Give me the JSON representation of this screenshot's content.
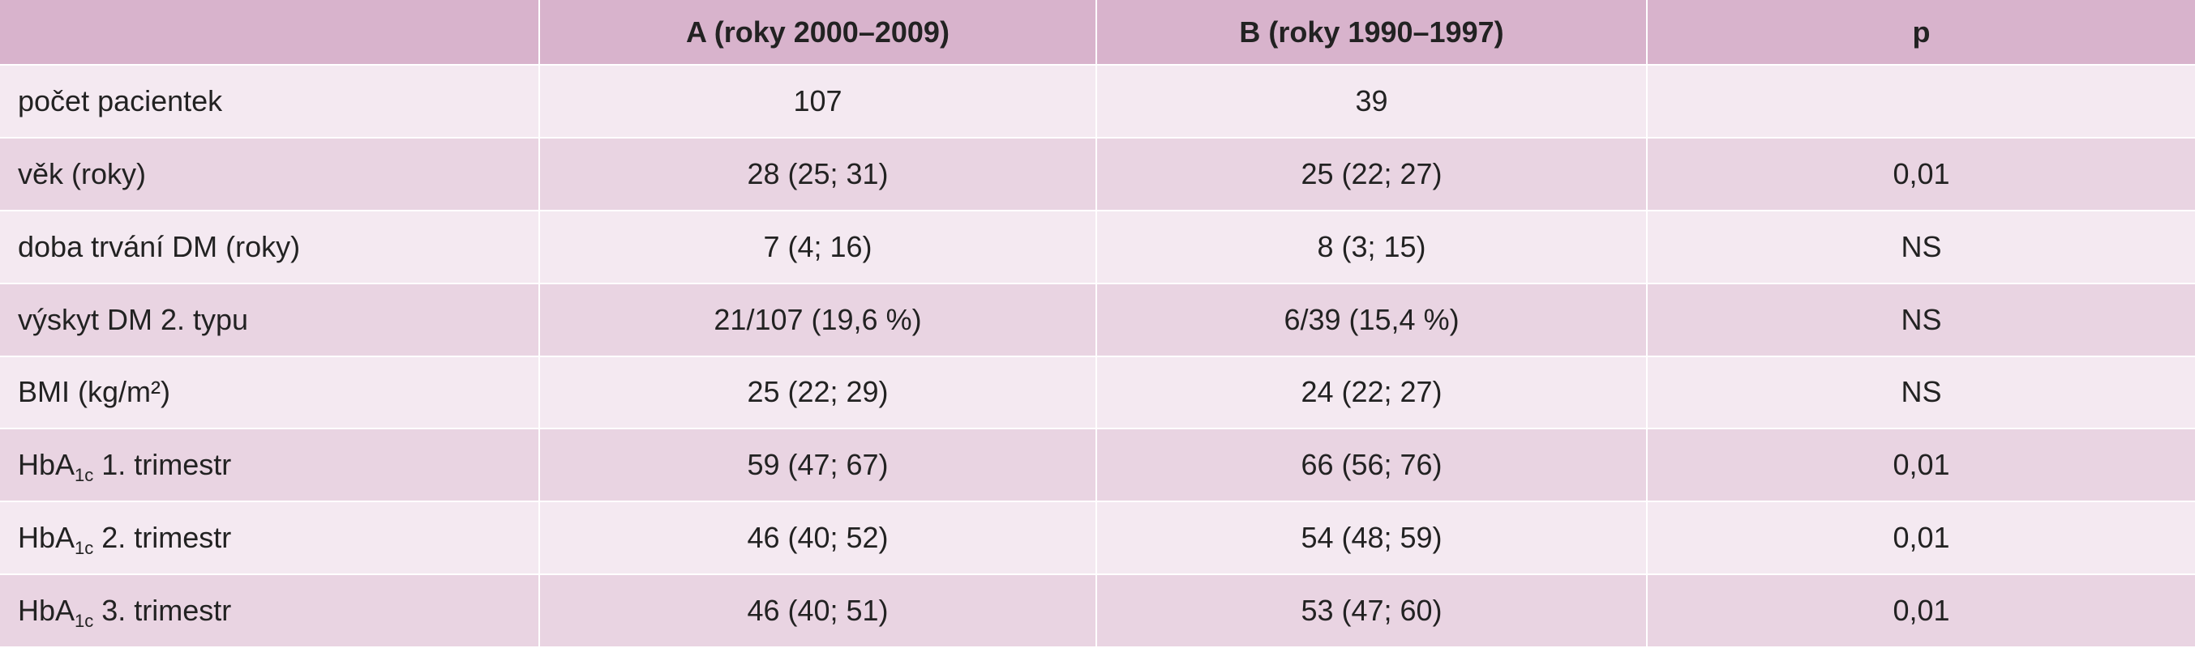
{
  "header": {
    "col0": "",
    "col1": "A (roky 2000–2009)",
    "col2": "B (roky 1990–1997)",
    "col3": "p"
  },
  "rows": [
    {
      "label": "počet pacientek",
      "a": "107",
      "b": "39",
      "p": ""
    },
    {
      "label": "věk (roky)",
      "a": "28 (25; 31)",
      "b": "25 (22; 27)",
      "p": "0,01"
    },
    {
      "label": "doba trvání DM (roky)",
      "a": "7 (4; 16)",
      "b": "8 (3; 15)",
      "p": "NS"
    },
    {
      "label": "výskyt DM 2. typu",
      "a": "21/107 (19,6 %)",
      "b": "6/39 (15,4 %)",
      "p": "NS"
    },
    {
      "label": "BMI (kg/m²)",
      "a": "25 (22; 29)",
      "b": "24 (22; 27)",
      "p": "NS"
    },
    {
      "label_main": "HbA",
      "label_sub": "1c",
      "label_rest": " 1. trimestr",
      "a": "59 (47; 67)",
      "b": "66 (56; 76)",
      "p": "0,01"
    },
    {
      "label_main": "HbA",
      "label_sub": "1c",
      "label_rest": " 2. trimestr",
      "a": "46 (40; 52)",
      "b": "54 (48; 59)",
      "p": "0,01"
    },
    {
      "label_main": "HbA",
      "label_sub": "1c",
      "label_rest": " 3. trimestr",
      "a": "46 (40; 51)",
      "b": "53 (47; 60)",
      "p": "0,01"
    }
  ]
}
